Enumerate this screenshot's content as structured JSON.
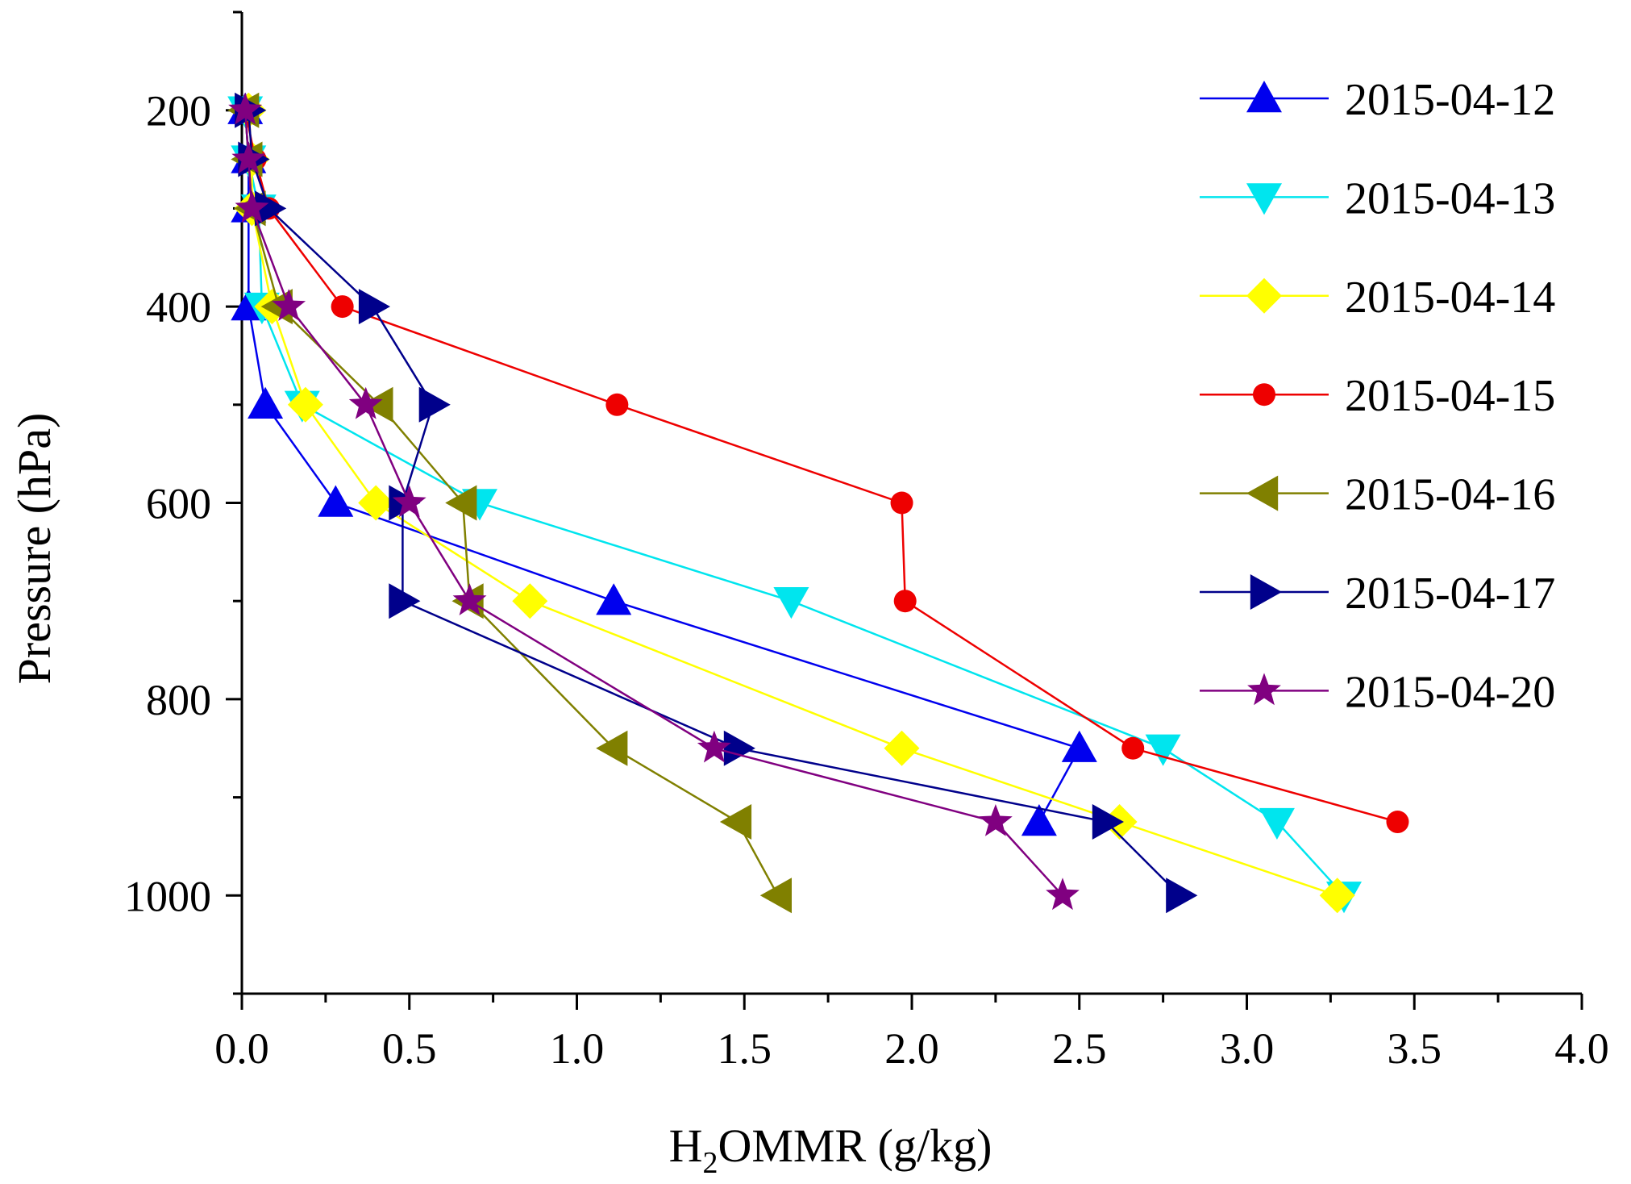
{
  "chart_data": {
    "type": "line",
    "title": "",
    "xlabel": {
      "main": "H",
      "subscript": "2",
      "rest": "OMMR (g/kg)"
    },
    "ylabel": "Pressure (hPa)",
    "xlim": [
      0,
      4.0
    ],
    "ylim": [
      1100,
      100
    ],
    "y_inverted": true,
    "grid": false,
    "legend_position": "top-right",
    "x_ticks": [
      0.0,
      0.5,
      1.0,
      1.5,
      2.0,
      2.5,
      3.0,
      3.5,
      4.0
    ],
    "x_tick_labels": [
      "0.0",
      "0.5",
      "1.0",
      "1.5",
      "2.0",
      "2.5",
      "3.0",
      "3.5",
      "4.0"
    ],
    "y_ticks": [
      200,
      400,
      600,
      800,
      1000
    ],
    "y_tick_labels": [
      "200",
      "400",
      "600",
      "800",
      "1000"
    ],
    "series": [
      {
        "name": "2015-04-12",
        "color": "#0000ee",
        "marker": "triangle-up",
        "points": [
          [
            0.01,
            200
          ],
          [
            0.02,
            250
          ],
          [
            0.02,
            300
          ],
          [
            0.02,
            400
          ],
          [
            0.07,
            500
          ],
          [
            0.28,
            600
          ],
          [
            1.11,
            700
          ],
          [
            2.5,
            850
          ],
          [
            2.38,
            925
          ]
        ]
      },
      {
        "name": "2015-04-13",
        "color": "#00e5ee",
        "marker": "triangle-down",
        "points": [
          [
            0.01,
            200
          ],
          [
            0.02,
            250
          ],
          [
            0.05,
            300
          ],
          [
            0.06,
            400
          ],
          [
            0.18,
            500
          ],
          [
            0.71,
            600
          ],
          [
            1.64,
            700
          ],
          [
            2.75,
            850
          ],
          [
            3.09,
            925
          ],
          [
            3.29,
            1000
          ]
        ]
      },
      {
        "name": "2015-04-14",
        "color": "#ffff00",
        "marker": "diamond",
        "points": [
          [
            0.02,
            200
          ],
          [
            0.03,
            250
          ],
          [
            0.03,
            300
          ],
          [
            0.09,
            400
          ],
          [
            0.19,
            500
          ],
          [
            0.4,
            600
          ],
          [
            0.86,
            700
          ],
          [
            1.97,
            850
          ],
          [
            2.62,
            925
          ],
          [
            3.27,
            1000
          ]
        ]
      },
      {
        "name": "2015-04-15",
        "color": "#ee0000",
        "marker": "circle",
        "points": [
          [
            0.01,
            200
          ],
          [
            0.04,
            250
          ],
          [
            0.08,
            300
          ],
          [
            0.3,
            400
          ],
          [
            1.12,
            500
          ],
          [
            1.97,
            600
          ],
          [
            1.98,
            700
          ],
          [
            2.66,
            850
          ],
          [
            3.45,
            925
          ]
        ]
      },
      {
        "name": "2015-04-16",
        "color": "#808000",
        "marker": "triangle-left",
        "points": [
          [
            0.01,
            200
          ],
          [
            0.02,
            250
          ],
          [
            0.03,
            300
          ],
          [
            0.11,
            400
          ],
          [
            0.41,
            500
          ],
          [
            0.66,
            600
          ],
          [
            0.68,
            700
          ],
          [
            1.11,
            850
          ],
          [
            1.48,
            925
          ],
          [
            1.6,
            1000
          ]
        ]
      },
      {
        "name": "2015-04-17",
        "color": "#00008b",
        "marker": "triangle-right",
        "points": [
          [
            0.02,
            200
          ],
          [
            0.03,
            250
          ],
          [
            0.08,
            300
          ],
          [
            0.39,
            400
          ],
          [
            0.57,
            500
          ],
          [
            0.48,
            600
          ],
          [
            0.48,
            700
          ],
          [
            1.48,
            850
          ],
          [
            2.58,
            925
          ],
          [
            2.8,
            1000
          ]
        ]
      },
      {
        "name": "2015-04-20",
        "color": "#800080",
        "marker": "star",
        "points": [
          [
            0.01,
            200
          ],
          [
            0.02,
            250
          ],
          [
            0.03,
            300
          ],
          [
            0.14,
            400
          ],
          [
            0.37,
            500
          ],
          [
            0.5,
            600
          ],
          [
            0.68,
            700
          ],
          [
            1.41,
            850
          ],
          [
            2.25,
            925
          ],
          [
            2.45,
            1000
          ]
        ]
      }
    ]
  }
}
